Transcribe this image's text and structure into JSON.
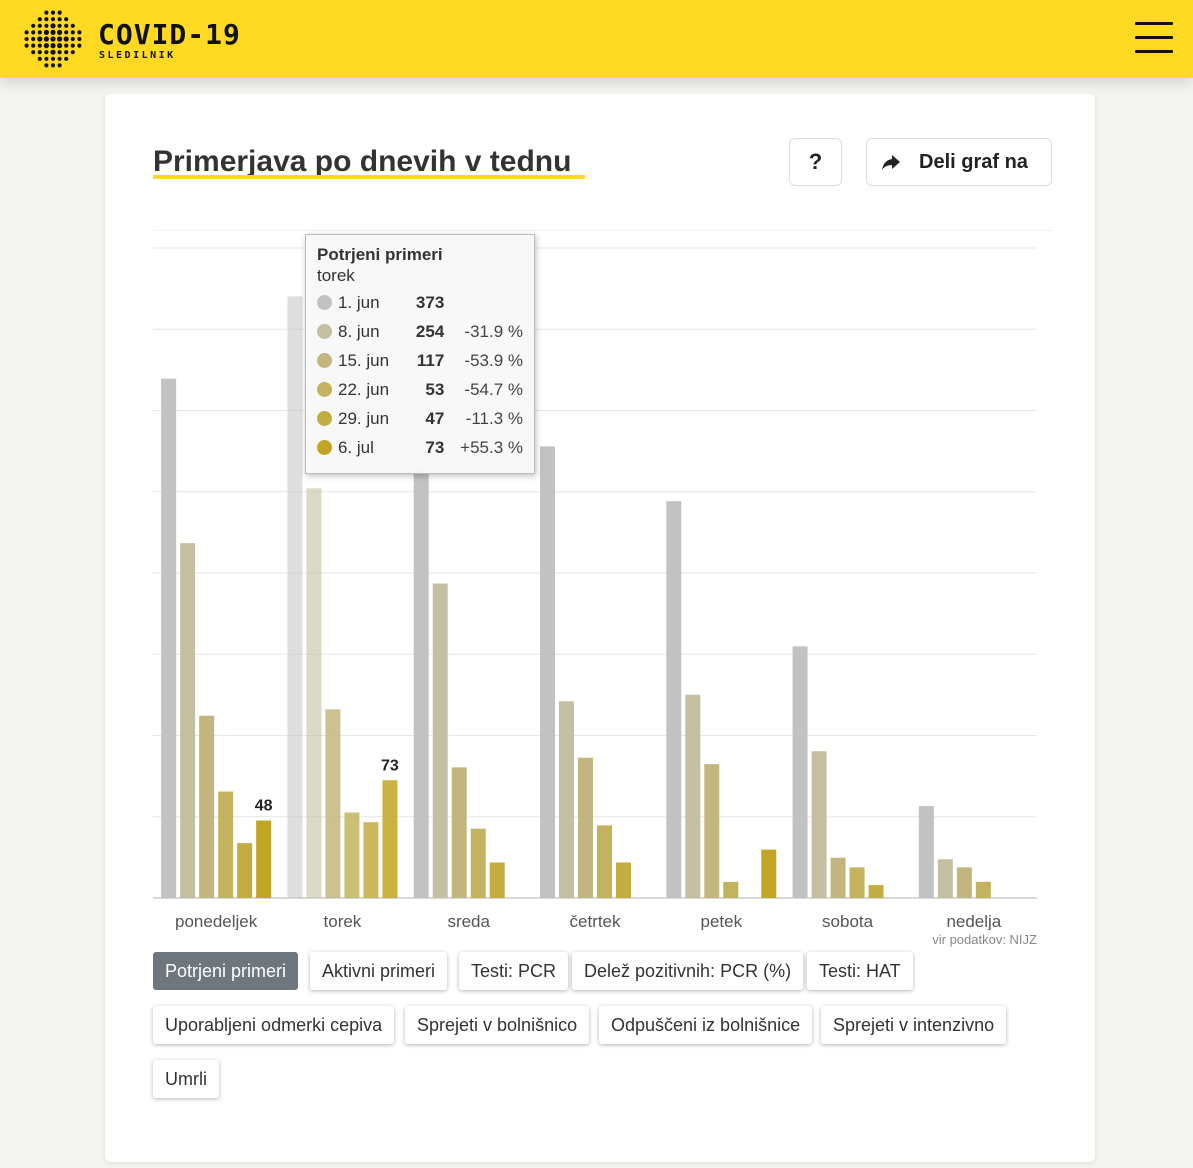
{
  "brand": {
    "title": "COVID-19",
    "subtitle": "SLEDILNIK"
  },
  "header": {
    "menu_icon": "hamburger-menu-icon"
  },
  "card": {
    "title": "Primerjava po dnevih v tednu",
    "help_label": "?",
    "share_label": "Deli graf na",
    "share_icon": "share-arrow-icon",
    "source_note": "vir podatkov: NIJZ"
  },
  "chart_data": {
    "type": "bar",
    "categories": [
      "ponedeljek",
      "torek",
      "sreda",
      "četrtek",
      "petek",
      "sobota",
      "nedelja"
    ],
    "series": [
      {
        "name": "1. jun",
        "color": "#c2c2c2",
        "values": [
          322,
          373,
          267,
          280,
          246,
          156,
          57
        ]
      },
      {
        "name": "8. jun",
        "color": "#c5bfa2",
        "values": [
          220,
          254,
          195,
          122,
          126,
          91,
          24
        ]
      },
      {
        "name": "15. jun",
        "color": "#c2b67e",
        "values": [
          113,
          117,
          81,
          87,
          83,
          25,
          19
        ]
      },
      {
        "name": "22. jun",
        "color": "#c4b35e",
        "values": [
          66,
          53,
          43,
          45,
          10,
          19,
          10
        ]
      },
      {
        "name": "29. jun",
        "color": "#c3ac40",
        "values": [
          34,
          47,
          22,
          22,
          0,
          8,
          0
        ]
      },
      {
        "name": "6. jul",
        "color": "#c2a524",
        "values": [
          48,
          73,
          0,
          0,
          30,
          0,
          0
        ]
      }
    ],
    "data_labels": [
      {
        "category": "ponedeljek",
        "series": "6. jul",
        "text": "48"
      },
      {
        "category": "torek",
        "series": "6. jul",
        "text": "73"
      }
    ],
    "ylim": [
      0,
      403
    ],
    "grid": true,
    "legend": "none",
    "highlighted_category": "torek"
  },
  "tooltip": {
    "title": "Potrjeni primeri",
    "subtitle": "torek",
    "rows": [
      {
        "date": "1. jun",
        "value": "373",
        "pct": "",
        "color": "#c2c2c2"
      },
      {
        "date": "8. jun",
        "value": "254",
        "pct": "-31.9 %",
        "color": "#c5bfa2"
      },
      {
        "date": "15. jun",
        "value": "117",
        "pct": "-53.9 %",
        "color": "#c2b67e"
      },
      {
        "date": "22. jun",
        "value": "53",
        "pct": "-54.7 %",
        "color": "#c4b35e"
      },
      {
        "date": "29. jun",
        "value": "47",
        "pct": "-11.3 %",
        "color": "#c3ac40"
      },
      {
        "date": "6. jul",
        "value": "73",
        "pct": "+55.3 %",
        "color": "#c2a524"
      }
    ]
  },
  "tabs": [
    {
      "label": "Potrjeni primeri",
      "active": true
    },
    {
      "label": "Aktivni primeri",
      "active": false
    },
    {
      "label": "Testi: PCR",
      "active": false
    },
    {
      "label": "Delež pozitivnih: PCR (%)",
      "active": false
    },
    {
      "label": "Testi: HAT",
      "active": false
    },
    {
      "label": "Uporabljeni odmerki cepiva",
      "active": false
    },
    {
      "label": "Sprejeti v bolnišnico",
      "active": false
    },
    {
      "label": "Odpuščeni iz bolnišnice",
      "active": false
    },
    {
      "label": "Sprejeti v intenzivno",
      "active": false
    },
    {
      "label": "Umrli",
      "active": false
    }
  ]
}
